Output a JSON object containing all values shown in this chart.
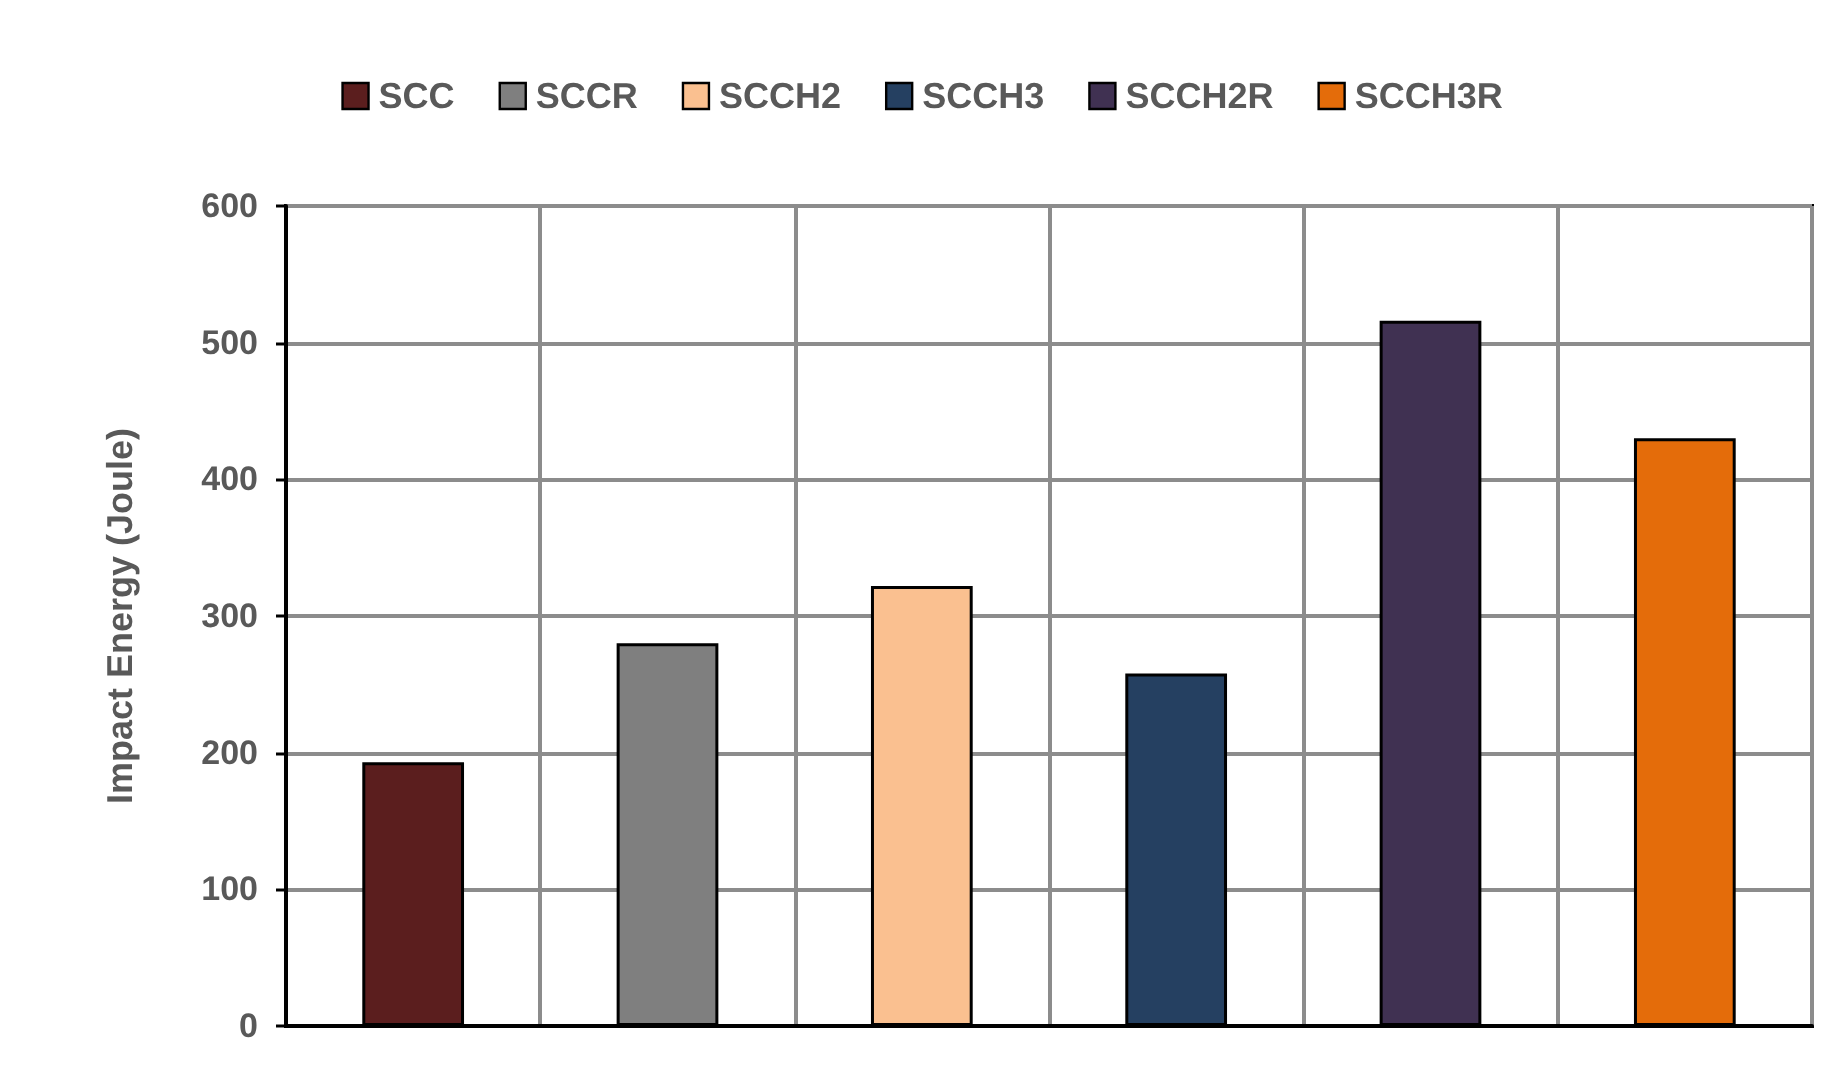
{
  "chart_data": {
    "type": "bar",
    "ylabel": "Impact Energy (Joule)",
    "categories": [
      null,
      null,
      null,
      null,
      null,
      null
    ],
    "series": [
      {
        "name": "SCC",
        "color": "#5b1e1e",
        "values": [
          193,
          null,
          null,
          null,
          null,
          null
        ]
      },
      {
        "name": "SCCR",
        "color": "#7f7f7f",
        "values": [
          null,
          280,
          null,
          null,
          null,
          null
        ]
      },
      {
        "name": "SCCH2",
        "color": "#fac090",
        "values": [
          null,
          null,
          322,
          null,
          null,
          null
        ]
      },
      {
        "name": "SCCH3",
        "color": "#254061",
        "values": [
          null,
          null,
          null,
          258,
          null,
          null
        ]
      },
      {
        "name": "SCCH2R",
        "color": "#403152",
        "values": [
          null,
          null,
          null,
          null,
          516,
          null
        ]
      },
      {
        "name": "SCCH3R",
        "color": "#e46c0a",
        "values": [
          null,
          null,
          null,
          null,
          null,
          430
        ]
      }
    ],
    "ylim": [
      0,
      600
    ],
    "yticks": [
      0,
      100,
      200,
      300,
      400,
      500,
      600
    ],
    "grid": true,
    "legend": "top",
    "tick_labels": "y"
  }
}
